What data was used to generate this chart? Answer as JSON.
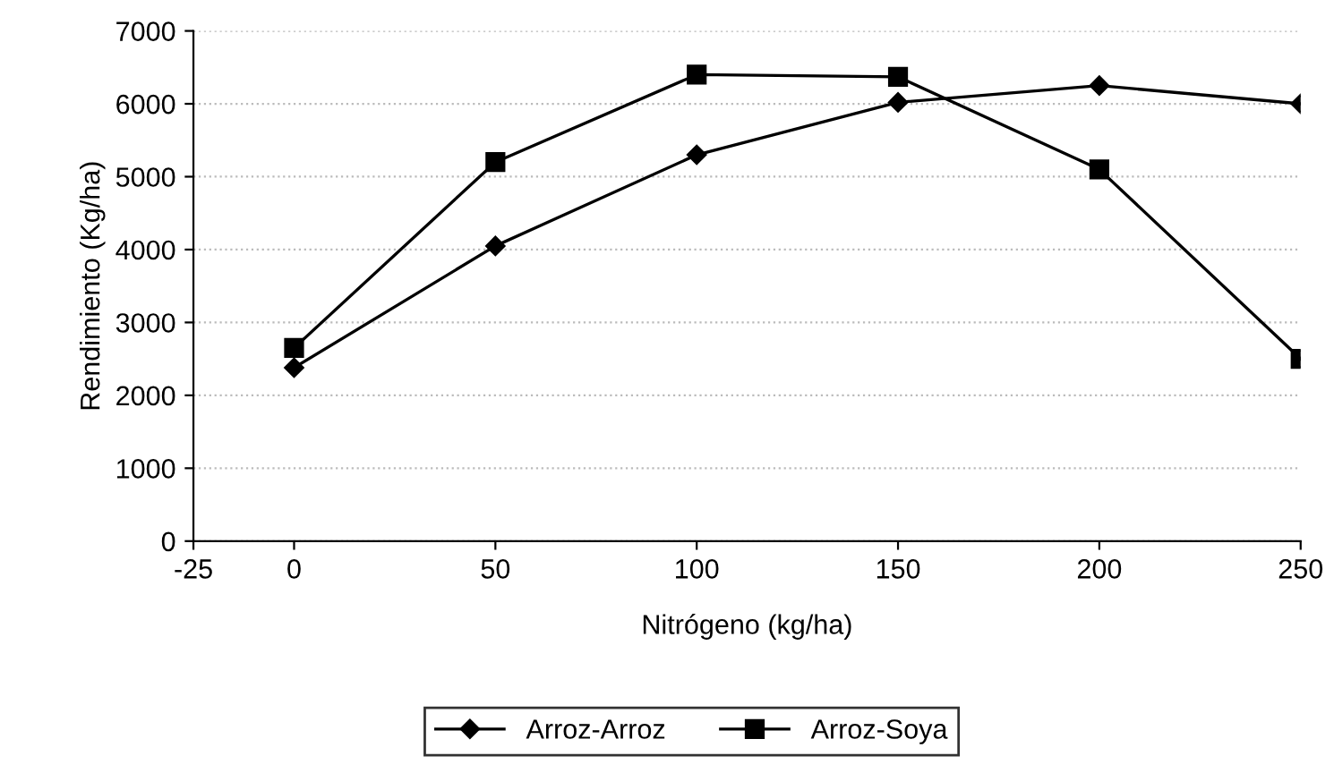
{
  "chart_data": {
    "type": "line",
    "xlabel": "Nitrógeno (kg/ha)",
    "ylabel": "Rendimiento (Kg/ha)",
    "x": [
      0,
      50,
      100,
      150,
      200,
      250
    ],
    "series": [
      {
        "name": "Arroz-Arroz",
        "color": "#000000",
        "marker": "diamond",
        "values": [
          2380,
          4050,
          5300,
          6020,
          6250,
          6000
        ]
      },
      {
        "name": "Arroz-Soya",
        "color": "#000000",
        "marker": "square",
        "values": [
          2650,
          5200,
          6400,
          6370,
          5100,
          2500
        ]
      }
    ],
    "xlim": [
      -25,
      250
    ],
    "xticks": [
      -25,
      0,
      50,
      100,
      150,
      200,
      250
    ],
    "ylim": [
      0,
      7000
    ],
    "yticks": [
      0,
      1000,
      2000,
      3000,
      4000,
      5000,
      6000,
      7000
    ],
    "grid": "y",
    "legend": "bottom",
    "line_style": "solid"
  }
}
